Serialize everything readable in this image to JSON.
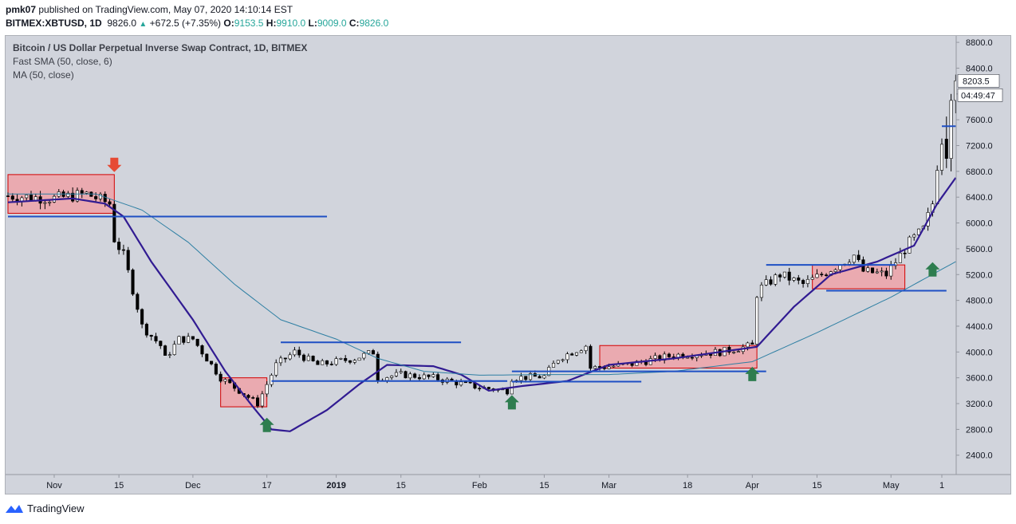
{
  "header": {
    "author": "pmk07",
    "published_text": "published on TradingView.com, May 07, 2020 14:10:14 EST",
    "symbol": "BITMEX:XBTUSD, 1D",
    "last": "9826.0",
    "change": "+672.5 (+7.35%)",
    "open_label": "O:",
    "open": "9153.5",
    "high_label": "H:",
    "high": "9910.0",
    "low_label": "L:",
    "low": "9009.0",
    "close_label": "C:",
    "close": "9826.0"
  },
  "legend": {
    "title": "Bitcoin / US Dollar Perpetual Inverse Swap Contract, 1D, BITMEX",
    "ind1": "Fast SMA (50, close, 6)",
    "ind2": "MA (50, close)"
  },
  "footer": {
    "brand": "TradingView"
  },
  "colors": {
    "background": "#d1d4dc",
    "candle_up": "#ffffff",
    "candle_down": "#000000",
    "fast_sma": "#311b92",
    "ma": "#2e7fa3",
    "level_line": "#1e4fc4",
    "box_fill": "#eea2a8",
    "box_border": "#d40000",
    "arrow_down": "#e64a35",
    "arrow_up": "#2e7d4f"
  },
  "chart_data": {
    "type": "candlestick",
    "timeframe": "1D",
    "y_ticks": [
      2400,
      2800,
      3200,
      3600,
      4000,
      4400,
      4800,
      5200,
      5600,
      6000,
      6400,
      6800,
      7200,
      7600,
      8000,
      8400,
      8800
    ],
    "y_tick_labels": [
      "2400.0",
      "2800.0",
      "3200.0",
      "3600.0",
      "4000.0",
      "4400.0",
      "4800.0",
      "5200.0",
      "5600.0",
      "6000.0",
      "6400.0",
      "6800.0",
      "7200.0",
      "7600.0",
      "8000.0",
      "8400.0",
      "8800.0"
    ],
    "ylim": [
      2100,
      8900
    ],
    "x_range": [
      "2018-10-22",
      "2019-05-12"
    ],
    "x_ticks": [
      {
        "date": "2018-11-01",
        "label": "Nov"
      },
      {
        "date": "2018-11-15",
        "label": "15"
      },
      {
        "date": "2018-12-01",
        "label": "Dec"
      },
      {
        "date": "2018-12-17",
        "label": "17"
      },
      {
        "date": "2019-01-01",
        "label": "2019"
      },
      {
        "date": "2019-01-15",
        "label": "15"
      },
      {
        "date": "2019-02-01",
        "label": "Feb"
      },
      {
        "date": "2019-02-15",
        "label": "15"
      },
      {
        "date": "2019-03-01",
        "label": "Mar"
      },
      {
        "date": "2019-03-18",
        "label": "18"
      },
      {
        "date": "2019-04-01",
        "label": "Apr"
      },
      {
        "date": "2019-04-15",
        "label": "15"
      },
      {
        "date": "2019-05-01",
        "label": "May"
      },
      {
        "date": "2019-05-12",
        "label": "1"
      }
    ],
    "price_label": "8203.5",
    "countdown_label": "04:49:47",
    "close_anchors": [
      [
        "2018-10-22",
        6420
      ],
      [
        "2018-11-01",
        6380
      ],
      [
        "2018-11-08",
        6450
      ],
      [
        "2018-11-13",
        6300
      ],
      [
        "2018-11-14",
        5750
      ],
      [
        "2018-11-16",
        5500
      ],
      [
        "2018-11-19",
        4700
      ],
      [
        "2018-11-20",
        4400
      ],
      [
        "2018-11-24",
        4100
      ],
      [
        "2018-11-25",
        3900
      ],
      [
        "2018-11-28",
        4200
      ],
      [
        "2018-12-01",
        4200
      ],
      [
        "2018-12-04",
        3900
      ],
      [
        "2018-12-07",
        3600
      ],
      [
        "2018-12-10",
        3450
      ],
      [
        "2018-12-15",
        3200
      ],
      [
        "2018-12-17",
        3500
      ],
      [
        "2018-12-19",
        3800
      ],
      [
        "2018-12-23",
        4000
      ],
      [
        "2018-12-28",
        3800
      ],
      [
        "2019-01-05",
        3900
      ],
      [
        "2019-01-09",
        4000
      ],
      [
        "2019-01-10",
        3600
      ],
      [
        "2019-01-15",
        3650
      ],
      [
        "2019-01-22",
        3600
      ],
      [
        "2019-02-01",
        3450
      ],
      [
        "2019-02-07",
        3400
      ],
      [
        "2019-02-08",
        3600
      ],
      [
        "2019-02-15",
        3620
      ],
      [
        "2019-02-18",
        3900
      ],
      [
        "2019-02-24",
        4100
      ],
      [
        "2019-02-25",
        3750
      ],
      [
        "2019-03-05",
        3800
      ],
      [
        "2019-03-15",
        3950
      ],
      [
        "2019-03-25",
        4000
      ],
      [
        "2019-04-01",
        4100
      ],
      [
        "2019-04-02",
        4900
      ],
      [
        "2019-04-03",
        5000
      ],
      [
        "2019-04-07",
        5200
      ],
      [
        "2019-04-12",
        5050
      ],
      [
        "2019-04-16",
        5200
      ],
      [
        "2019-04-23",
        5500
      ],
      [
        "2019-04-25",
        5250
      ],
      [
        "2019-04-30",
        5200
      ],
      [
        "2019-05-02",
        5400
      ],
      [
        "2019-05-05",
        5700
      ],
      [
        "2019-05-08",
        5900
      ],
      [
        "2019-05-10",
        6300
      ],
      [
        "2019-05-11",
        6900
      ],
      [
        "2019-05-12",
        7300
      ]
    ],
    "chart_end_candles": [
      {
        "date": "2019-05-13",
        "o": 7300,
        "h": 7650,
        "l": 6850,
        "c": 7000
      },
      {
        "date": "2019-05-14",
        "o": 7000,
        "h": 8000,
        "l": 6800,
        "c": 7900
      },
      {
        "date": "2019-05-15",
        "o": 7900,
        "h": 8300,
        "l": 7700,
        "c": 8203.5
      }
    ],
    "series": [
      {
        "name": "Fast SMA (50, close, 6)",
        "anchors": [
          [
            "2018-10-22",
            6320
          ],
          [
            "2018-11-05",
            6380
          ],
          [
            "2018-11-12",
            6300
          ],
          [
            "2018-11-16",
            6100
          ],
          [
            "2018-11-22",
            5400
          ],
          [
            "2018-12-01",
            4500
          ],
          [
            "2018-12-08",
            3700
          ],
          [
            "2018-12-14",
            3150
          ],
          [
            "2018-12-18",
            2800
          ],
          [
            "2018-12-22",
            2770
          ],
          [
            "2018-12-30",
            3100
          ],
          [
            "2019-01-06",
            3500
          ],
          [
            "2019-01-12",
            3800
          ],
          [
            "2019-01-22",
            3780
          ],
          [
            "2019-01-28",
            3650
          ],
          [
            "2019-02-03",
            3400
          ],
          [
            "2019-02-10",
            3470
          ],
          [
            "2019-02-20",
            3550
          ],
          [
            "2019-03-01",
            3800
          ],
          [
            "2019-03-15",
            3900
          ],
          [
            "2019-03-25",
            4000
          ],
          [
            "2019-04-02",
            4080
          ],
          [
            "2019-04-10",
            4700
          ],
          [
            "2019-04-18",
            5200
          ],
          [
            "2019-04-28",
            5400
          ],
          [
            "2019-05-06",
            5650
          ],
          [
            "2019-05-11",
            6300
          ],
          [
            "2019-05-15",
            6700
          ]
        ]
      },
      {
        "name": "MA (50, close)",
        "anchors": [
          [
            "2018-10-22",
            6450
          ],
          [
            "2018-11-10",
            6450
          ],
          [
            "2018-11-20",
            6200
          ],
          [
            "2018-11-30",
            5700
          ],
          [
            "2018-12-10",
            5050
          ],
          [
            "2018-12-20",
            4500
          ],
          [
            "2019-01-01",
            4200
          ],
          [
            "2019-01-10",
            3900
          ],
          [
            "2019-01-20",
            3700
          ],
          [
            "2019-02-01",
            3640
          ],
          [
            "2019-02-15",
            3650
          ],
          [
            "2019-03-01",
            3650
          ],
          [
            "2019-03-15",
            3700
          ],
          [
            "2019-04-01",
            3850
          ],
          [
            "2019-04-15",
            4300
          ],
          [
            "2019-05-01",
            4850
          ],
          [
            "2019-05-15",
            5400
          ]
        ]
      }
    ],
    "horizontal_levels": [
      {
        "price": 6100,
        "from": "2018-10-22",
        "to": "2018-12-30"
      },
      {
        "price": 3550,
        "from": "2018-12-18",
        "to": "2019-02-07"
      },
      {
        "price": 4150,
        "from": "2018-12-20",
        "to": "2019-01-28"
      },
      {
        "price": 3700,
        "from": "2019-02-08",
        "to": "2019-04-04"
      },
      {
        "price": 3540,
        "from": "2019-02-08",
        "to": "2019-03-08"
      },
      {
        "price": 5350,
        "from": "2019-04-04",
        "to": "2019-05-02"
      },
      {
        "price": 4950,
        "from": "2019-04-17",
        "to": "2019-05-13"
      },
      {
        "price": 7500,
        "from": "2019-05-12",
        "to": "2019-05-15"
      }
    ],
    "boxes": [
      {
        "from": "2018-10-22",
        "to": "2018-11-14",
        "top": 6750,
        "bottom": 6150
      },
      {
        "from": "2018-12-07",
        "to": "2018-12-17",
        "top": 3600,
        "bottom": 3150
      },
      {
        "from": "2019-02-27",
        "to": "2019-04-02",
        "top": 4100,
        "bottom": 3750
      },
      {
        "from": "2019-04-14",
        "to": "2019-05-04",
        "top": 5350,
        "bottom": 4980
      }
    ],
    "arrows": [
      {
        "dir": "down",
        "date": "2018-11-14",
        "price": 6900
      },
      {
        "dir": "up",
        "date": "2018-12-17",
        "price": 2870
      },
      {
        "dir": "up",
        "date": "2019-02-08",
        "price": 3220
      },
      {
        "dir": "up",
        "date": "2019-04-01",
        "price": 3660
      },
      {
        "dir": "up",
        "date": "2019-05-10",
        "price": 5280
      }
    ]
  }
}
